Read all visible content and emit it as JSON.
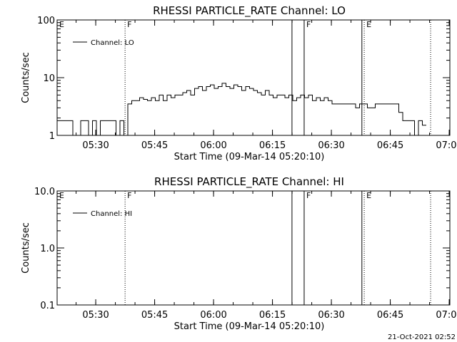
{
  "chart_data": [
    {
      "type": "line",
      "title": "RHESSI PARTICLE_RATE Channel: LO",
      "xlabel": "Start Time (09-Mar-14 05:20:10)",
      "ylabel": "Counts/sec",
      "yscale": "log",
      "ylim": [
        1,
        100
      ],
      "ytick_labels": [
        "1",
        "10",
        "100"
      ],
      "ytick_values": [
        1,
        10,
        100
      ],
      "x_unit": "minutes since 05:20:10",
      "xlim": [
        0,
        100
      ],
      "xtick_labels": [
        "05:30",
        "05:45",
        "06:00",
        "06:15",
        "06:30",
        "06:45",
        "07:00"
      ],
      "xtick_values": [
        9.83,
        24.83,
        39.83,
        54.83,
        69.83,
        84.83,
        99.83
      ],
      "legend": "Channel: LO",
      "legend_position": "top-left",
      "series": [
        {
          "name": "Channel: LO",
          "x": [
            0,
            1,
            2,
            3,
            4,
            5,
            6,
            7,
            8,
            9,
            10,
            11,
            12,
            13,
            14,
            15,
            16,
            17,
            18,
            19,
            20,
            21,
            22,
            23,
            24,
            25,
            26,
            27,
            28,
            29,
            30,
            31,
            32,
            33,
            34,
            35,
            36,
            37,
            38,
            39,
            40,
            41,
            42,
            43,
            44,
            45,
            46,
            47,
            48,
            49,
            50,
            51,
            52,
            53,
            54,
            55,
            56,
            57,
            58,
            59,
            60,
            61,
            62,
            63,
            64,
            65,
            66,
            67,
            68,
            69,
            70,
            71,
            72,
            73,
            74,
            75,
            76,
            77,
            78,
            79,
            80,
            81,
            82,
            83,
            84,
            85,
            86,
            87,
            88,
            89,
            90,
            91,
            92,
            93
          ],
          "y": [
            1.8,
            1.8,
            1.8,
            1.8,
            1,
            1,
            1.8,
            1.8,
            1,
            1.8,
            1,
            1.8,
            1.8,
            1.8,
            1.8,
            1,
            1.8,
            1,
            3.5,
            4,
            4,
            4.5,
            4.2,
            4,
            4.5,
            4,
            5,
            4,
            5,
            4.5,
            5,
            5,
            5.5,
            6,
            5,
            6.5,
            7,
            6,
            7,
            7.5,
            6.5,
            7,
            8,
            7,
            6.5,
            7.5,
            7,
            6,
            7,
            6.5,
            6,
            5.5,
            5,
            6,
            5,
            4.5,
            5,
            5,
            4.5,
            5,
            4,
            4.5,
            5,
            4.5,
            5,
            4,
            4.5,
            4,
            4.5,
            4,
            3.5,
            3.5,
            3.5,
            3.5,
            3.5,
            3.5,
            3,
            3.5,
            3.5,
            3,
            3,
            3.5,
            3.5,
            3.5,
            3.5,
            3.5,
            3.5,
            2.5,
            1.8,
            1.8,
            1.8,
            1,
            1.8,
            1.5
          ]
        }
      ],
      "markers": [
        {
          "label": "E",
          "x": 0,
          "style": "dotted"
        },
        {
          "label": "F",
          "x": 17.3,
          "style": "dotted"
        },
        {
          "label": "",
          "x": 59.8,
          "style": "solid"
        },
        {
          "label": "F",
          "x": 62.9,
          "style": "solid"
        },
        {
          "label": "",
          "x": 77.6,
          "style": "solid"
        },
        {
          "label": "E",
          "x": 78.2,
          "style": "dotted"
        },
        {
          "label": "",
          "x": 95.1,
          "style": "dotted"
        }
      ]
    },
    {
      "type": "line",
      "title": "RHESSI PARTICLE_RATE Channel: HI",
      "xlabel": "Start Time (09-Mar-14 05:20:10)",
      "ylabel": "Counts/sec",
      "yscale": "log",
      "ylim": [
        0.1,
        10
      ],
      "ytick_labels": [
        "0.1",
        "1.0",
        "10.0"
      ],
      "ytick_values": [
        0.1,
        1,
        10
      ],
      "x_unit": "minutes since 05:20:10",
      "xlim": [
        0,
        100
      ],
      "xtick_labels": [
        "05:30",
        "05:45",
        "06:00",
        "06:15",
        "06:30",
        "06:45",
        "07:00"
      ],
      "xtick_values": [
        9.83,
        24.83,
        39.83,
        54.83,
        69.83,
        84.83,
        99.83
      ],
      "legend": "Channel: HI",
      "legend_position": "top-left",
      "series": [
        {
          "name": "Channel: HI",
          "x": [],
          "y": []
        }
      ],
      "markers": [
        {
          "label": "E",
          "x": 0,
          "style": "dotted"
        },
        {
          "label": "F",
          "x": 17.3,
          "style": "dotted"
        },
        {
          "label": "",
          "x": 59.8,
          "style": "solid"
        },
        {
          "label": "F",
          "x": 62.9,
          "style": "solid"
        },
        {
          "label": "",
          "x": 77.6,
          "style": "solid"
        },
        {
          "label": "E",
          "x": 78.2,
          "style": "dotted"
        },
        {
          "label": "",
          "x": 95.1,
          "style": "dotted"
        }
      ]
    }
  ],
  "footer": {
    "timestamp": "21-Oct-2021 02:52"
  }
}
